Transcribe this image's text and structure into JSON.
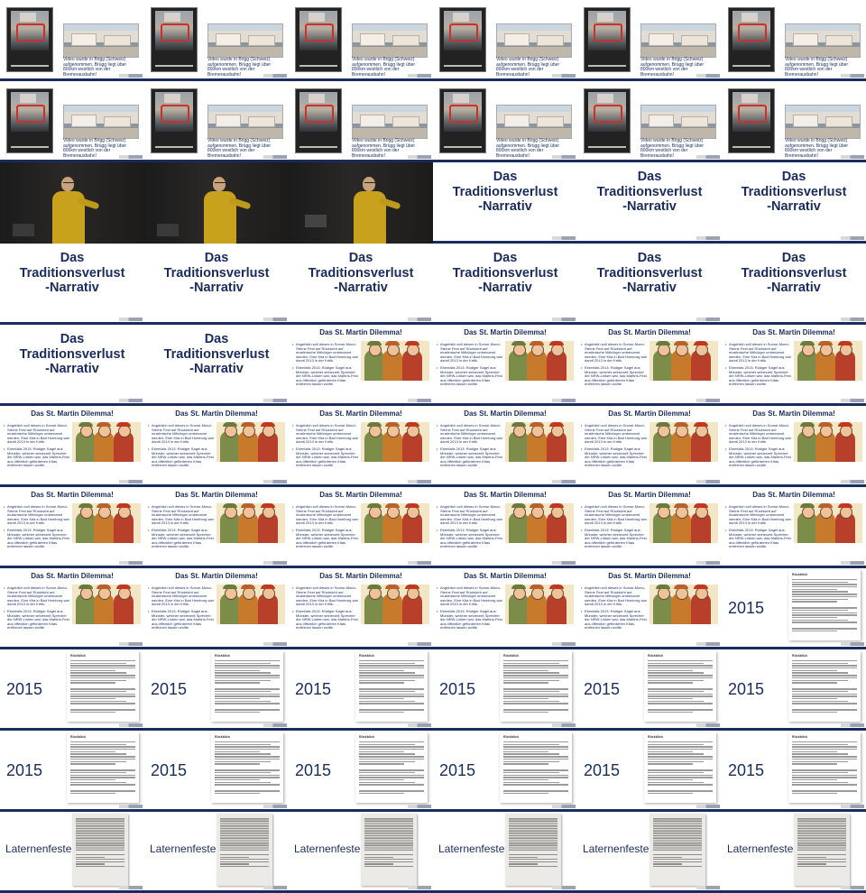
{
  "cells": [
    {
      "type": "video",
      "caption": "Video wurde in Brigg (Schweiz) aufgenommen. Brügg liegt über 800km westlich von der Bremerausbahn!"
    },
    {
      "type": "video",
      "caption": "Video wurde in Brigg (Schweiz) aufgenommen. Brügg liegt über 800km westlich von der Bremerausbahn!"
    },
    {
      "type": "video",
      "caption": "Video wurde in Brigg (Schweiz) aufgenommen. Brügg liegt über 800km westlich von der Bremerausbahn!"
    },
    {
      "type": "video",
      "caption": "Video wurde in Brigg (Schweiz) aufgenommen. Brügg liegt über 800km westlich von der Bremerausbahn!"
    },
    {
      "type": "video",
      "caption": "Video wurde in Brigg (Schweiz) aufgenommen. Brügg liegt über 800km westlich von der Bremerausbahn!"
    },
    {
      "type": "video",
      "caption": "Video wurde in Brigg (Schweiz) aufgenommen. Brügg liegt über 800km westlich von der Bremerausbahn!"
    },
    {
      "type": "video",
      "caption": "Video wurde in Brigg (Schweiz) aufgenommen. Brügg liegt über 800km westlich von der Bremerausbahn!"
    },
    {
      "type": "video",
      "caption": "Video wurde in Brigg (Schweiz) aufgenommen. Brügg liegt über 800km westlich von der Bremerausbahn!"
    },
    {
      "type": "video",
      "caption": "Video wurde in Brigg (Schweiz) aufgenommen. Brügg liegt über 800km westlich von der Bremerausbahn!"
    },
    {
      "type": "video",
      "caption": "Video wurde in Brigg (Schweiz) aufgenommen. Brügg liegt über 800km westlich von der Bremerausbahn!"
    },
    {
      "type": "video",
      "caption": "Video wurde in Brigg (Schweiz) aufgenommen. Brügg liegt über 800km westlich von der Bremerausbahn!"
    },
    {
      "type": "video",
      "caption": "Video wurde in Brigg (Schweiz) aufgenommen. Brügg liegt über 800km westlich von der Bremerausbahn!"
    },
    {
      "type": "speaker",
      "variant": 0
    },
    {
      "type": "speaker",
      "variant": 1
    },
    {
      "type": "speaker",
      "variant": 2
    },
    {
      "type": "title",
      "text": "Das\nTraditionsverlust\n-Narrativ"
    },
    {
      "type": "title",
      "text": "Das\nTraditionsverlust\n-Narrativ"
    },
    {
      "type": "title",
      "text": "Das\nTraditionsverlust\n-Narrativ"
    },
    {
      "type": "title",
      "text": "Das\nTraditionsverlust\n-Narrativ"
    },
    {
      "type": "title",
      "text": "Das\nTraditionsverlust\n-Narrativ"
    },
    {
      "type": "title",
      "text": "Das\nTraditionsverlust\n-Narrativ"
    },
    {
      "type": "title",
      "text": "Das\nTraditionsverlust\n-Narrativ"
    },
    {
      "type": "title",
      "text": "Das\nTraditionsverlust\n-Narrativ"
    },
    {
      "type": "title",
      "text": "Das\nTraditionsverlust\n-Narrativ"
    },
    {
      "type": "title",
      "text": "Das\nTraditionsverlust\n-Narrativ"
    },
    {
      "type": "title",
      "text": "Das\nTraditionsverlust\n-Narrativ"
    },
    {
      "type": "dilemma"
    },
    {
      "type": "dilemma"
    },
    {
      "type": "dilemma"
    },
    {
      "type": "dilemma"
    },
    {
      "type": "dilemma"
    },
    {
      "type": "dilemma"
    },
    {
      "type": "dilemma"
    },
    {
      "type": "dilemma"
    },
    {
      "type": "dilemma"
    },
    {
      "type": "dilemma"
    },
    {
      "type": "dilemma"
    },
    {
      "type": "dilemma"
    },
    {
      "type": "dilemma"
    },
    {
      "type": "dilemma"
    },
    {
      "type": "dilemma"
    },
    {
      "type": "dilemma"
    },
    {
      "type": "dilemma"
    },
    {
      "type": "dilemma"
    },
    {
      "type": "dilemma"
    },
    {
      "type": "dilemma"
    },
    {
      "type": "dilemma"
    },
    {
      "type": "year"
    },
    {
      "type": "year"
    },
    {
      "type": "year"
    },
    {
      "type": "year"
    },
    {
      "type": "year"
    },
    {
      "type": "year"
    },
    {
      "type": "year"
    },
    {
      "type": "year"
    },
    {
      "type": "year"
    },
    {
      "type": "year"
    },
    {
      "type": "year"
    },
    {
      "type": "year"
    },
    {
      "type": "year"
    },
    {
      "type": "laterne"
    },
    {
      "type": "laterne"
    },
    {
      "type": "laterne"
    },
    {
      "type": "laterne"
    },
    {
      "type": "laterne"
    },
    {
      "type": "laterne"
    }
  ],
  "dilemma": {
    "title": "Das St. Martin Dilemma!",
    "bullets": [
      "Angeblich soll dieses in Sonne-Mond-Sterne Fest auf Rücksicht auf muslimische Mitbürger umbenannt werden. Eine Kita in Bad Homburg war damit 2013 in der Kritik.",
      "Ebenfalls 2013: Rüdiger Sagel aus Münster, welcher seinerzeit Sprecher der NRW-Linken war, das Martins-Fest aus öffentlich geförderten Kitas entfernen lassen wollte."
    ]
  },
  "year": {
    "number": "2015",
    "doc_heading": "Rückblick"
  },
  "laterne": {
    "title": "Laternenfeste"
  }
}
